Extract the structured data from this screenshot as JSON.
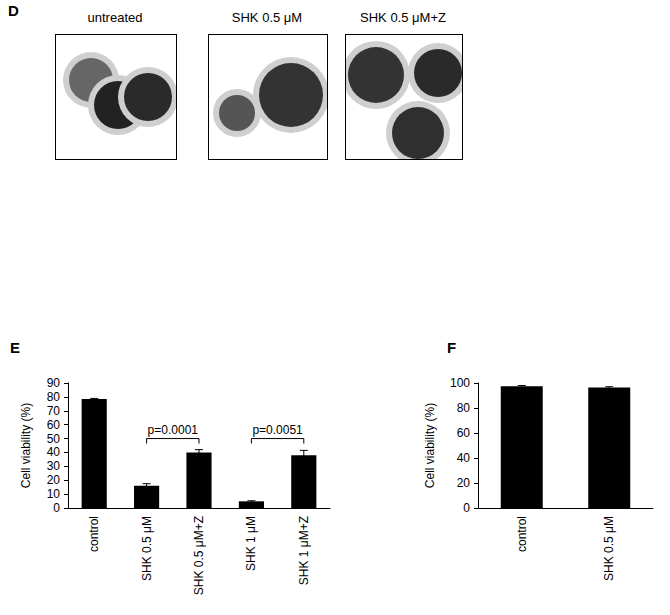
{
  "panel_d": {
    "panel": "D",
    "images": [
      {
        "label": "untreated"
      },
      {
        "label": "SHK 0.5 μM"
      },
      {
        "label": "SHK 0.5 μM+Z"
      }
    ]
  },
  "chart_data": [
    {
      "panel": "E",
      "type": "bar",
      "y_label": "Cell viability (%)",
      "categories": [
        "control",
        "SHK 0.5 μM",
        "SHK 0.5 μM+Z",
        "SHK 1 μM",
        "SHK 1 μM+Z"
      ],
      "values": [
        78.5,
        16,
        40,
        4.8,
        38
      ],
      "errors": [
        0.4,
        1.5,
        2,
        0.4,
        3.5
      ],
      "color": "#000000",
      "ylim": [
        0,
        90
      ],
      "yticks": [
        0,
        10,
        20,
        30,
        40,
        50,
        60,
        70,
        80,
        90
      ],
      "grid": false,
      "annotations": [
        {
          "text": "p=0.0001",
          "from": 1,
          "to": 2,
          "y": 50
        },
        {
          "text": "p=0.0051",
          "from": 3,
          "to": 4,
          "y": 50
        }
      ]
    },
    {
      "panel": "F",
      "type": "bar",
      "y_label": "Cell viability (%)",
      "categories": [
        "control",
        "SHK 0.5 μM"
      ],
      "values": [
        97.5,
        96.5
      ],
      "errors": [
        0.5,
        0.5
      ],
      "color": "#000000",
      "ylim": [
        0,
        100
      ],
      "yticks": [
        0,
        20,
        40,
        60,
        80,
        100
      ],
      "grid": false
    }
  ]
}
